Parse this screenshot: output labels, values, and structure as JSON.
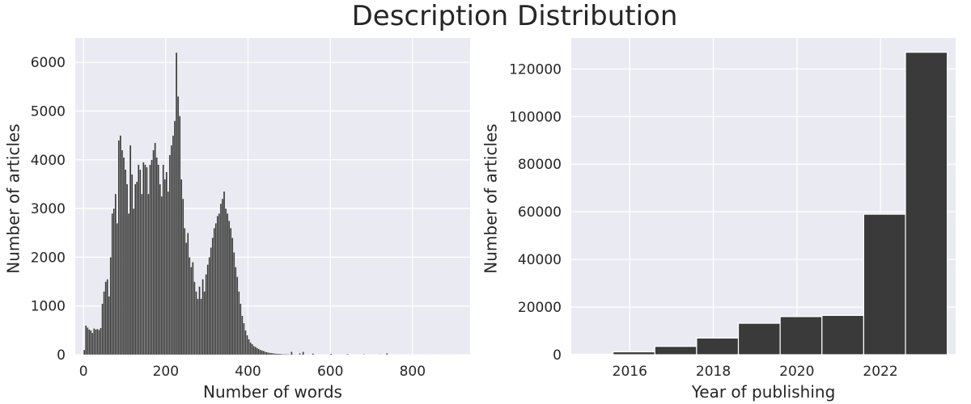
{
  "figure": {
    "title": "Description Distribution",
    "background": "#ffffff",
    "panel_background": "#eaeaf2",
    "grid_color": "#ffffff",
    "bar_color": "#3a3a3a",
    "bar_edge": "#ffffff"
  },
  "chart_data": [
    {
      "type": "bar",
      "kind": "histogram",
      "xlabel": "Number of words",
      "ylabel": "Number of articles",
      "xlim": [
        -20,
        940
      ],
      "ylim": [
        0,
        6500
      ],
      "xticks": [
        0,
        200,
        400,
        600,
        800
      ],
      "yticks": [
        0,
        1000,
        2000,
        3000,
        4000,
        5000,
        6000
      ],
      "grid": true,
      "legend": false,
      "bins": [
        [
          0,
          100
        ],
        [
          4,
          600
        ],
        [
          8,
          560
        ],
        [
          12,
          520
        ],
        [
          16,
          500
        ],
        [
          20,
          450
        ],
        [
          24,
          540
        ],
        [
          28,
          520
        ],
        [
          32,
          530
        ],
        [
          36,
          510
        ],
        [
          40,
          550
        ],
        [
          44,
          1050
        ],
        [
          48,
          1300
        ],
        [
          52,
          1500
        ],
        [
          56,
          1550
        ],
        [
          60,
          1200
        ],
        [
          64,
          2000
        ],
        [
          68,
          2900
        ],
        [
          72,
          3000
        ],
        [
          76,
          3300
        ],
        [
          80,
          2700
        ],
        [
          84,
          4400
        ],
        [
          88,
          4500
        ],
        [
          92,
          4200
        ],
        [
          96,
          4050
        ],
        [
          100,
          3800
        ],
        [
          104,
          3500
        ],
        [
          108,
          2900
        ],
        [
          112,
          4300
        ],
        [
          116,
          3700
        ],
        [
          120,
          3000
        ],
        [
          124,
          3500
        ],
        [
          128,
          3550
        ],
        [
          132,
          3900
        ],
        [
          136,
          3800
        ],
        [
          140,
          3300
        ],
        [
          144,
          3950
        ],
        [
          148,
          3900
        ],
        [
          152,
          3850
        ],
        [
          156,
          3300
        ],
        [
          160,
          3900
        ],
        [
          164,
          4000
        ],
        [
          168,
          4200
        ],
        [
          172,
          4350
        ],
        [
          176,
          4050
        ],
        [
          180,
          3900
        ],
        [
          184,
          3500
        ],
        [
          188,
          3250
        ],
        [
          192,
          3900
        ],
        [
          196,
          3600
        ],
        [
          200,
          3750
        ],
        [
          204,
          3350
        ],
        [
          208,
          4100
        ],
        [
          212,
          4300
        ],
        [
          216,
          4500
        ],
        [
          220,
          4800
        ],
        [
          224,
          6200
        ],
        [
          228,
          5300
        ],
        [
          232,
          4900
        ],
        [
          236,
          3600
        ],
        [
          240,
          3200
        ],
        [
          244,
          2600
        ],
        [
          248,
          2300
        ],
        [
          252,
          2500
        ],
        [
          256,
          2000
        ],
        [
          260,
          1800
        ],
        [
          264,
          1900
        ],
        [
          268,
          1500
        ],
        [
          272,
          1300
        ],
        [
          276,
          1150
        ],
        [
          280,
          1400
        ],
        [
          284,
          1150
        ],
        [
          288,
          1550
        ],
        [
          292,
          1300
        ],
        [
          296,
          1650
        ],
        [
          300,
          1850
        ],
        [
          304,
          2000
        ],
        [
          308,
          2200
        ],
        [
          312,
          2400
        ],
        [
          316,
          2600
        ],
        [
          320,
          2700
        ],
        [
          324,
          2850
        ],
        [
          328,
          2900
        ],
        [
          332,
          3100
        ],
        [
          336,
          3200
        ],
        [
          340,
          3350
        ],
        [
          344,
          3000
        ],
        [
          348,
          2900
        ],
        [
          352,
          2750
        ],
        [
          356,
          2600
        ],
        [
          360,
          2400
        ],
        [
          364,
          2100
        ],
        [
          368,
          1800
        ],
        [
          372,
          1600
        ],
        [
          376,
          1300
        ],
        [
          380,
          1050
        ],
        [
          384,
          800
        ],
        [
          388,
          650
        ],
        [
          392,
          500
        ],
        [
          396,
          400
        ],
        [
          400,
          320
        ],
        [
          404,
          250
        ],
        [
          408,
          220
        ],
        [
          412,
          180
        ],
        [
          416,
          160
        ],
        [
          420,
          140
        ],
        [
          424,
          120
        ],
        [
          428,
          100
        ],
        [
          432,
          90
        ],
        [
          436,
          80
        ],
        [
          440,
          60
        ],
        [
          444,
          55
        ],
        [
          448,
          45
        ],
        [
          452,
          40
        ],
        [
          456,
          35
        ],
        [
          460,
          30
        ],
        [
          464,
          25
        ],
        [
          468,
          22
        ],
        [
          472,
          20
        ],
        [
          476,
          18
        ],
        [
          480,
          15
        ],
        [
          484,
          14
        ],
        [
          488,
          12
        ],
        [
          492,
          10
        ],
        [
          496,
          10
        ],
        [
          500,
          8
        ],
        [
          504,
          60
        ],
        [
          508,
          8
        ],
        [
          512,
          6
        ],
        [
          516,
          6
        ],
        [
          520,
          5
        ],
        [
          524,
          30
        ],
        [
          528,
          5
        ],
        [
          532,
          60
        ],
        [
          536,
          4
        ],
        [
          540,
          4
        ],
        [
          544,
          3
        ],
        [
          548,
          3
        ],
        [
          552,
          3
        ],
        [
          556,
          25
        ],
        [
          560,
          2
        ],
        [
          600,
          20
        ],
        [
          640,
          15
        ],
        [
          680,
          10
        ],
        [
          720,
          8
        ],
        [
          736,
          30
        ],
        [
          760,
          5
        ],
        [
          800,
          3
        ],
        [
          840,
          2
        ],
        [
          880,
          1
        ],
        [
          900,
          1
        ]
      ],
      "bin_width": 4
    },
    {
      "type": "bar",
      "kind": "histogram",
      "xlabel": "Year of publishing",
      "ylabel": "Number of articles",
      "xlim": [
        2014.6,
        2023.8
      ],
      "ylim": [
        0,
        133000
      ],
      "xticks": [
        2016,
        2018,
        2020,
        2022
      ],
      "yticks": [
        0,
        20000,
        40000,
        60000,
        80000,
        100000,
        120000
      ],
      "grid": true,
      "legend": false,
      "bins": [
        [
          2014.6,
          2015.6,
          200
        ],
        [
          2015.6,
          2016.6,
          1200
        ],
        [
          2016.6,
          2017.6,
          3500
        ],
        [
          2017.6,
          2018.6,
          7000
        ],
        [
          2018.6,
          2019.6,
          13200
        ],
        [
          2019.6,
          2020.6,
          16000
        ],
        [
          2020.6,
          2021.6,
          16500
        ],
        [
          2021.6,
          2022.6,
          59000
        ],
        [
          2022.6,
          2023.6,
          127000
        ]
      ]
    }
  ]
}
